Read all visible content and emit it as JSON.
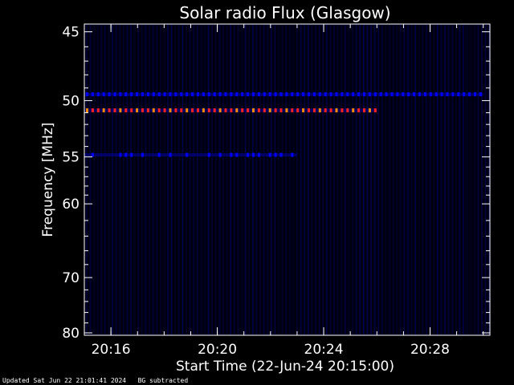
{
  "chart_data": {
    "type": "heatmap",
    "title": "Solar radio Flux (Glasgow)",
    "xlabel": "Start Time (22-Jun-24 20:15:00)",
    "ylabel": "Frequency [MHz]",
    "xlim_minutes": [
      20.25,
      20.52
    ],
    "x_start": "20:15:00",
    "x_end": "20:30:15",
    "x_ticks": [
      "20:16",
      "20:20",
      "20:24",
      "20:28"
    ],
    "y_ticks": [
      45,
      50,
      55,
      60,
      70,
      80
    ],
    "ylim": [
      45,
      80
    ],
    "y_scale": "reciprocal",
    "colormap": [
      "#000010",
      "#00007a",
      "#0000ff",
      "#ff2020",
      "#ff8c00"
    ],
    "features": [
      {
        "name": "",
        "freq_mhz": 50.8,
        "from": "20:15",
        "to": "20:26",
        "intensity": "high"
      },
      {
        "name": "",
        "freq_mhz": 49.5,
        "from": "20:15",
        "to": "20:30",
        "intensity": "medium"
      },
      {
        "name": "",
        "freq_mhz": 54.8,
        "from": "20:15",
        "to": "20:23",
        "intensity": "low"
      }
    ]
  },
  "footer": {
    "updated": "Updated Sat Jun 22 21:01:41 2024",
    "note": "BG subtracted"
  }
}
